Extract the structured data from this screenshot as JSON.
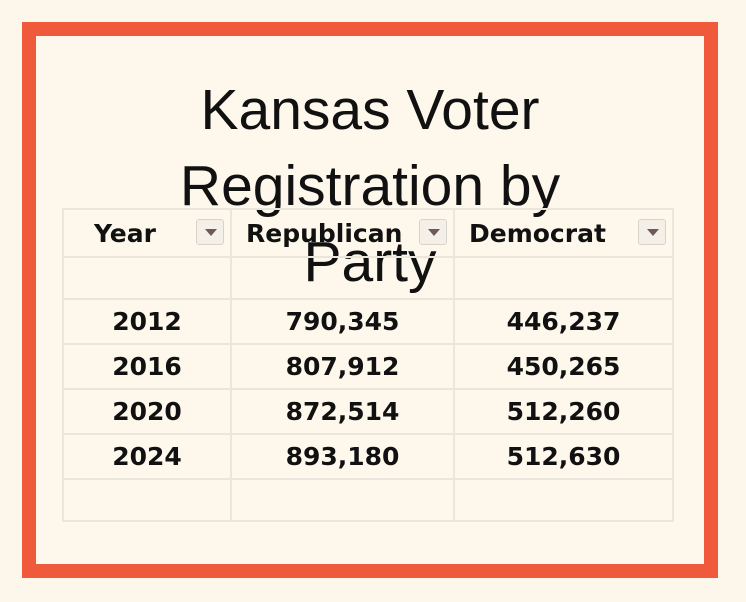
{
  "header": {
    "title": "Kansas Voter Registration by Party"
  },
  "table": {
    "columns": [
      "Year",
      "Republican",
      "Democrat"
    ],
    "rows": [
      [
        "2012",
        "790,345",
        "446,237"
      ],
      [
        "2016",
        "807,912",
        "450,265"
      ],
      [
        "2020",
        "872,514",
        "512,260"
      ],
      [
        "2024",
        "893,180",
        "512,630"
      ]
    ]
  }
}
